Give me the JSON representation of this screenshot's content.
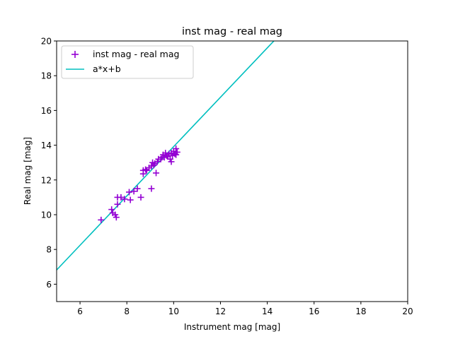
{
  "chart_data": {
    "type": "scatter",
    "title": "inst mag - real mag",
    "xlabel": "Instrument mag [mag]",
    "ylabel": "Real mag [mag]",
    "xlim": [
      5,
      20
    ],
    "ylim": [
      5,
      20
    ],
    "x_ticks": [
      6,
      8,
      10,
      12,
      14,
      16,
      18,
      20
    ],
    "y_ticks": [
      6,
      8,
      10,
      12,
      14,
      16,
      18,
      20
    ],
    "grid": false,
    "legend_position": "top-left",
    "series": [
      {
        "name": "inst mag - real mag",
        "kind": "scatter",
        "marker": "plus",
        "color": "#9400d3",
        "points": [
          [
            6.9,
            9.7
          ],
          [
            7.35,
            10.3
          ],
          [
            7.4,
            10.1
          ],
          [
            7.5,
            10.0
          ],
          [
            7.55,
            9.85
          ],
          [
            7.6,
            10.6
          ],
          [
            7.6,
            11.0
          ],
          [
            7.75,
            11.0
          ],
          [
            7.9,
            10.9
          ],
          [
            8.1,
            11.3
          ],
          [
            8.15,
            10.85
          ],
          [
            8.3,
            11.35
          ],
          [
            8.45,
            11.5
          ],
          [
            8.6,
            11.0
          ],
          [
            8.7,
            12.35
          ],
          [
            8.7,
            12.55
          ],
          [
            8.8,
            12.6
          ],
          [
            8.85,
            12.55
          ],
          [
            8.95,
            12.7
          ],
          [
            9.05,
            11.5
          ],
          [
            9.05,
            12.8
          ],
          [
            9.1,
            13.0
          ],
          [
            9.15,
            12.85
          ],
          [
            9.2,
            12.95
          ],
          [
            9.25,
            12.4
          ],
          [
            9.3,
            13.05
          ],
          [
            9.35,
            13.2
          ],
          [
            9.45,
            13.2
          ],
          [
            9.5,
            13.3
          ],
          [
            9.55,
            13.45
          ],
          [
            9.6,
            13.3
          ],
          [
            9.65,
            13.55
          ],
          [
            9.7,
            13.4
          ],
          [
            9.75,
            13.35
          ],
          [
            9.8,
            13.5
          ],
          [
            9.85,
            13.2
          ],
          [
            9.9,
            13.05
          ],
          [
            9.9,
            13.55
          ],
          [
            9.95,
            13.4
          ],
          [
            10.0,
            13.65
          ],
          [
            10.05,
            13.5
          ],
          [
            10.1,
            13.8
          ],
          [
            10.1,
            13.45
          ],
          [
            10.15,
            13.6
          ]
        ]
      },
      {
        "name": "a*x+b",
        "kind": "line",
        "color": "#00bfbf",
        "slope": 1.42,
        "intercept": -0.28
      }
    ]
  }
}
